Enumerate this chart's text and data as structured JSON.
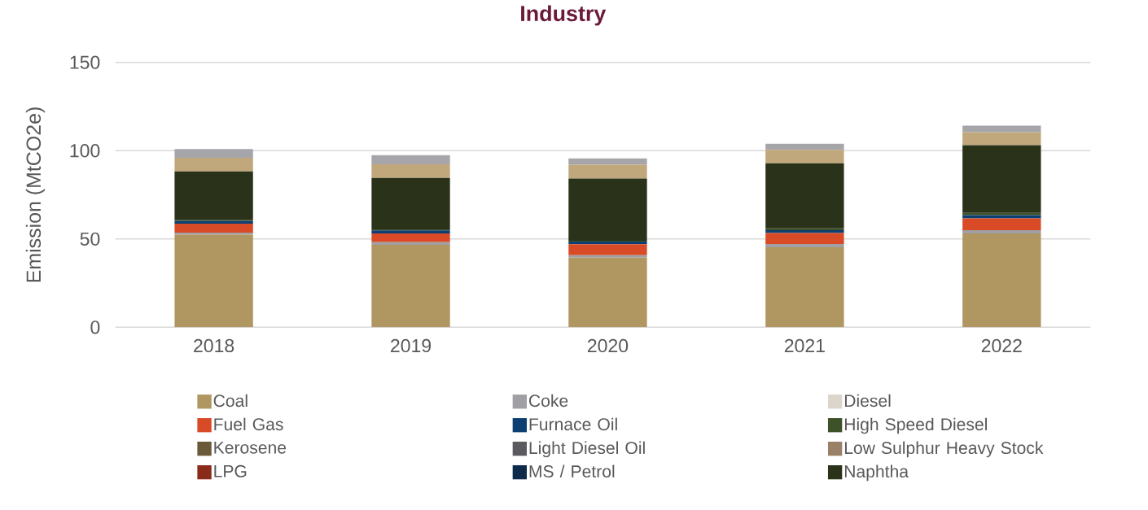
{
  "chart_data": {
    "type": "bar",
    "stacked": true,
    "title": "Industry",
    "ylabel": "Emission (MtCO2e)",
    "categories": [
      "2018",
      "2019",
      "2020",
      "2021",
      "2022"
    ],
    "ylim": [
      0,
      150
    ],
    "yticks": [
      0,
      50,
      100,
      150
    ],
    "grid": "y",
    "legend": "bottom",
    "series": [
      {
        "name": "Coal",
        "color": "#b09660",
        "values": [
          52.4,
          46.7,
          39.4,
          45.3,
          53.1
        ]
      },
      {
        "name": "Coke",
        "color": "#a0a0a4",
        "values": [
          1.2,
          1.5,
          1.4,
          1.8,
          1.9
        ]
      },
      {
        "name": "Diesel",
        "color": "#dcd5cc",
        "values": [
          null,
          null,
          null,
          null,
          null
        ]
      },
      {
        "name": "Fuel Gas",
        "color": "#d94a27",
        "values": [
          5.0,
          4.9,
          6.2,
          6.2,
          6.6
        ]
      },
      {
        "name": "Furnace Oil",
        "color": "#0d3f72",
        "values": [
          1.6,
          1.8,
          1.5,
          1.7,
          1.9
        ]
      },
      {
        "name": "High Speed Diesel",
        "color": "#3e5229",
        "values": [
          0.4,
          0.5,
          0.5,
          1.0,
          1.3
        ]
      },
      {
        "name": "Kerosene",
        "color": "#6b5a3a",
        "values": [
          null,
          null,
          null,
          null,
          null
        ]
      },
      {
        "name": "Light Diesel Oil",
        "color": "#5a5a5f",
        "values": [
          null,
          null,
          null,
          null,
          null
        ]
      },
      {
        "name": "Low Sulphur Heavy Stock",
        "color": "#998066",
        "values": [
          null,
          null,
          null,
          null,
          null
        ]
      },
      {
        "name": "LPG",
        "color": "#8a2a1a",
        "values": [
          null,
          null,
          null,
          null,
          null
        ]
      },
      {
        "name": "MS / Petrol",
        "color": "#0d2a4a",
        "values": [
          null,
          null,
          null,
          null,
          null
        ]
      },
      {
        "name": "Naphtha",
        "color": "#2a3219",
        "values": [
          27.6,
          29.2,
          35.2,
          36.8,
          38.3
        ]
      },
      {
        "color": "#c0a87c",
        "values": [
          7.8,
          7.7,
          7.8,
          7.7,
          7.4
        ]
      },
      {
        "color": "#a6a6aa",
        "values": [
          4.9,
          5.2,
          3.6,
          3.4,
          3.7
        ]
      }
    ]
  }
}
